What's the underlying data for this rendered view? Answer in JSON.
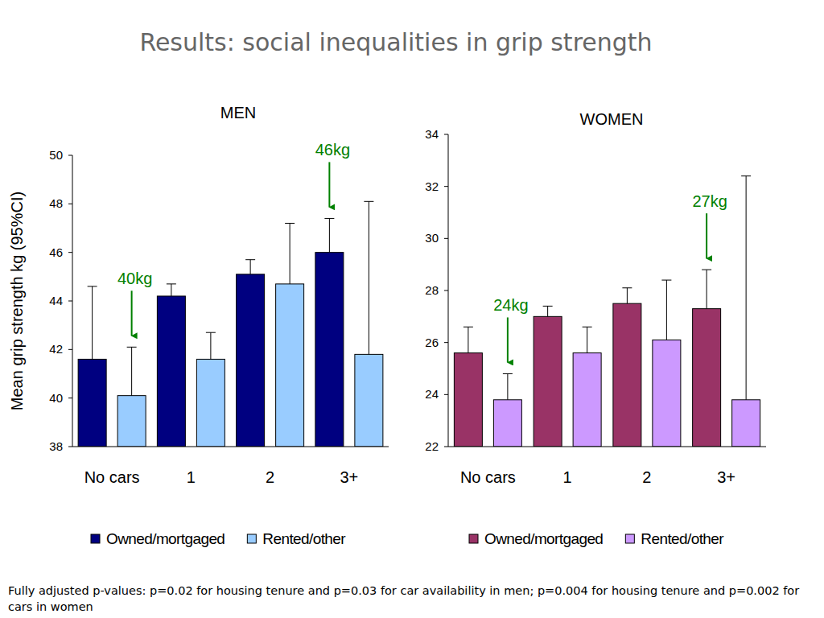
{
  "title": "Results: social inequalities in grip strength",
  "footnote": "Fully adjusted p-values: p=0.02 for housing tenure and p=0.03 for car availability in men; p=0.004 for housing tenure and p=0.002 for cars in women",
  "chart_data": [
    {
      "type": "bar",
      "title": "MEN",
      "y_label": "Mean grip strength kg (95%CI)",
      "categories": [
        "No cars",
        "1",
        "2",
        "3+"
      ],
      "series": [
        {
          "name": "Owned/mortgaged",
          "color": "#000080",
          "values": [
            41.6,
            44.2,
            45.1,
            46.0
          ],
          "errors": [
            3.0,
            0.5,
            0.6,
            1.4
          ]
        },
        {
          "name": "Rented/other",
          "color": "#99ccff",
          "values": [
            40.1,
            41.6,
            44.7,
            41.8
          ],
          "errors": [
            2.0,
            1.1,
            2.5,
            6.3
          ]
        }
      ],
      "ylim": [
        38,
        50
      ],
      "yticks": [
        38,
        40,
        42,
        44,
        46,
        48,
        50
      ],
      "grid": false,
      "legend": "bottom",
      "annotations": [
        {
          "text": "40kg",
          "category": "No cars",
          "series": "Rented/other",
          "color": "#008000"
        },
        {
          "text": "46kg",
          "category": "3+",
          "series": "Owned/mortgaged",
          "color": "#008000"
        }
      ]
    },
    {
      "type": "bar",
      "title": "WOMEN",
      "categories": [
        "No cars",
        "1",
        "2",
        "3+"
      ],
      "series": [
        {
          "name": "Owned/mortgaged",
          "color": "#993366",
          "values": [
            25.6,
            27.0,
            27.5,
            27.3
          ],
          "errors": [
            1.0,
            0.4,
            0.6,
            1.5
          ]
        },
        {
          "name": "Rented/other",
          "color": "#cc99ff",
          "values": [
            23.8,
            25.6,
            26.1,
            23.8
          ],
          "errors": [
            1.0,
            1.0,
            2.3,
            8.6
          ]
        }
      ],
      "ylim": [
        22,
        34
      ],
      "yticks": [
        22,
        24,
        26,
        28,
        30,
        32,
        34
      ],
      "grid": false,
      "legend": "bottom",
      "annotations": [
        {
          "text": "24kg",
          "category": "No cars",
          "series": "Rented/other",
          "color": "#008000"
        },
        {
          "text": "27kg",
          "category": "3+",
          "series": "Owned/mortgaged",
          "color": "#008000"
        }
      ]
    }
  ]
}
